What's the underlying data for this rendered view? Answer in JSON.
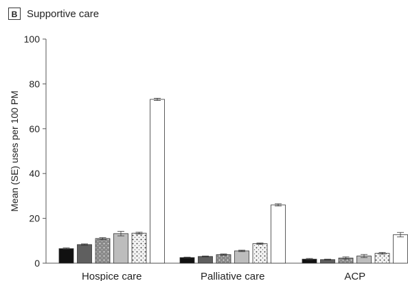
{
  "panel": {
    "letter": "B",
    "title": "Supportive care"
  },
  "chart_data": {
    "type": "bar",
    "title": "Supportive care",
    "xlabel": "",
    "ylabel": "Mean (SE) uses per 100 PM",
    "ylim": [
      0,
      100
    ],
    "yticks": [
      0,
      20,
      40,
      60,
      80,
      100
    ],
    "categories": [
      "Hospice care",
      "Palliative care",
      "ACP"
    ],
    "grid": false,
    "legend": "none",
    "series": [
      {
        "fill": "#111111",
        "pattern": "solid",
        "values": [
          6.5,
          2.5,
          1.8
        ],
        "errors": [
          0.3,
          0.2,
          0.3
        ]
      },
      {
        "fill": "#5f5f5f",
        "pattern": "solid",
        "values": [
          8.3,
          3.0,
          1.6
        ],
        "errors": [
          0.3,
          0.2,
          0.2
        ]
      },
      {
        "fill": "#8a8a8a",
        "pattern": "light-dots",
        "values": [
          11.0,
          3.8,
          2.3
        ],
        "errors": [
          0.4,
          0.3,
          0.5
        ]
      },
      {
        "fill": "#bdbdbd",
        "pattern": "solid",
        "values": [
          13.2,
          5.5,
          3.2
        ],
        "errors": [
          1.0,
          0.3,
          0.7
        ]
      },
      {
        "fill": "#e6e6e6",
        "pattern": "dark-dots",
        "values": [
          13.4,
          8.7,
          4.4
        ],
        "errors": [
          0.4,
          0.3,
          0.4
        ]
      },
      {
        "fill": "#ffffff",
        "pattern": "solid",
        "values": [
          73.1,
          26.0,
          12.7
        ],
        "errors": [
          0.5,
          0.5,
          1.0
        ]
      }
    ]
  }
}
